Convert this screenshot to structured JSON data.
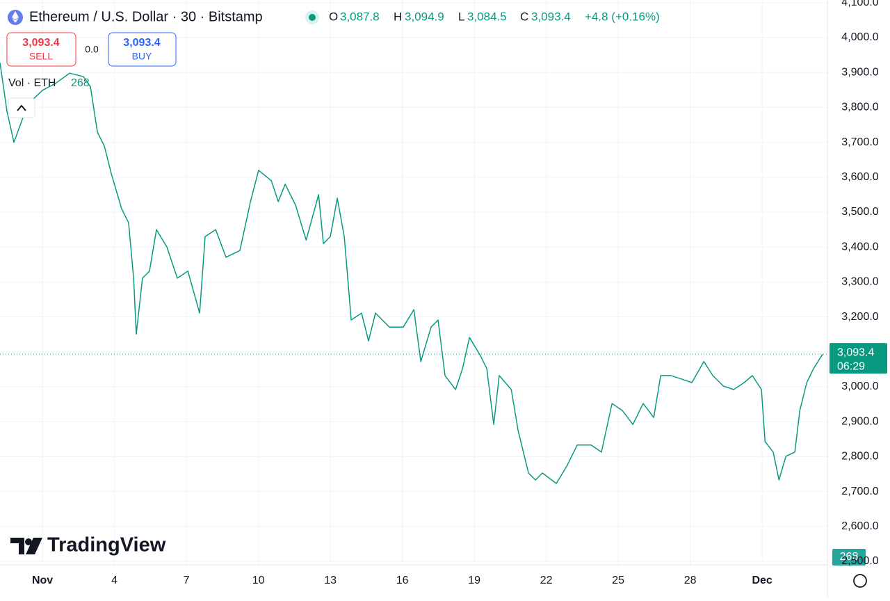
{
  "header": {
    "title": "Ethereum / U.S. Dollar · 30 · Bitstamp",
    "open_label": "O",
    "open": "3,087.8",
    "high_label": "H",
    "high": "3,094.9",
    "low_label": "L",
    "low": "3,084.5",
    "close_label": "C",
    "close": "3,093.4",
    "change": "+4.8 (+0.16%)"
  },
  "trade": {
    "sell_price": "3,093.4",
    "sell": "SELL",
    "spread": "0.0",
    "buy_price": "3,093.4",
    "buy": "BUY"
  },
  "volume": {
    "label": "Vol · ETH",
    "value": "268",
    "badge": "268"
  },
  "logo": "TradingView",
  "chart_data": {
    "type": "line",
    "color": "#089981",
    "x": [
      -0.77,
      -0.48,
      -0.19,
      0.39,
      1,
      1.55,
      2.13,
      2.71,
      3.0,
      3.29,
      3.58,
      3.87,
      4.3,
      4.59,
      4.8,
      4.91,
      5.17,
      5.46,
      5.75,
      6.19,
      6.62,
      7.06,
      7.55,
      7.78,
      8.22,
      8.65,
      9.23,
      9.67,
      10.01,
      10.54,
      10.83,
      11.12,
      11.55,
      11.99,
      12.51,
      12.71,
      13.0,
      13.29,
      13.58,
      13.87,
      14.3,
      14.59,
      14.88,
      15.46,
      16.04,
      16.48,
      16.77,
      17.2,
      17.49,
      17.78,
      18.22,
      18.51,
      18.8,
      19.23,
      19.52,
      19.81,
      20.04,
      20.54,
      20.83,
      21.26,
      21.55,
      21.84,
      22.42,
      22.86,
      23.29,
      23.87,
      24.3,
      24.74,
      25.17,
      25.61,
      26.04,
      26.48,
      26.77,
      27.2,
      27.64,
      28.07,
      28.57,
      28.94,
      29.38,
      29.81,
      30.25,
      30.59,
      30.97,
      31.12,
      31.46,
      31.7,
      31.99,
      32.36,
      32.57,
      32.86,
      33.14,
      33.52
    ],
    "values": [
      3928,
      3789,
      3700,
      3809,
      3849,
      3869,
      3898,
      3888,
      3859,
      3729,
      3689,
      3610,
      3510,
      3470,
      3311,
      3151,
      3311,
      3331,
      3450,
      3400,
      3311,
      3331,
      3211,
      3430,
      3450,
      3371,
      3390,
      3530,
      3620,
      3590,
      3530,
      3580,
      3520,
      3420,
      3550,
      3410,
      3430,
      3540,
      3430,
      3191,
      3211,
      3131,
      3211,
      3171,
      3171,
      3221,
      3072,
      3171,
      3191,
      3032,
      2992,
      3052,
      3141,
      3092,
      3052,
      2892,
      3032,
      2992,
      2873,
      2753,
      2733,
      2753,
      2723,
      2773,
      2833,
      2833,
      2813,
      2952,
      2932,
      2892,
      2952,
      2912,
      3032,
      3032,
      3022,
      3012,
      3072,
      3032,
      3002,
      2992,
      3012,
      3032,
      2992,
      2843,
      2813,
      2733,
      2801,
      2813,
      2932,
      3012,
      3052,
      3093
    ],
    "xlim": [
      -0.77,
      33.72
    ],
    "xticks": [
      {
        "value": 1,
        "label": "Nov"
      },
      4,
      7,
      10,
      13,
      16,
      19,
      22,
      25,
      28,
      {
        "value": 31,
        "label": "Dec"
      }
    ],
    "ylim": [
      2490,
      4107.6
    ],
    "yticks": [
      {
        "value": 2500,
        "label": "2,500.0"
      },
      {
        "value": 2600,
        "label": "2,600.0"
      },
      {
        "value": 2700,
        "label": "2,700.0"
      },
      {
        "value": 2800,
        "label": "2,800.0"
      },
      {
        "value": 2900,
        "label": "2,900.0"
      },
      {
        "value": 3000,
        "label": "3,000.0"
      },
      {
        "value": 3100,
        "label": "3,100.0"
      },
      {
        "value": 3200,
        "label": "3,200.0"
      },
      {
        "value": 3300,
        "label": "3,300.0"
      },
      {
        "value": 3400,
        "label": "3,400.0"
      },
      {
        "value": 3500,
        "label": "3,500.0"
      },
      {
        "value": 3600,
        "label": "3,600.0"
      },
      {
        "value": 3700,
        "label": "3,700.0"
      },
      {
        "value": 3800,
        "label": "3,800.0"
      },
      {
        "value": 3900,
        "label": "3,900.0"
      },
      {
        "value": 4000,
        "label": "4,000.0"
      },
      {
        "value": 4100,
        "label": "4,100.0"
      }
    ],
    "grid": true,
    "last_price": {
      "value": 3093.4,
      "label": "3,093.4"
    },
    "countdown": "06:29"
  }
}
